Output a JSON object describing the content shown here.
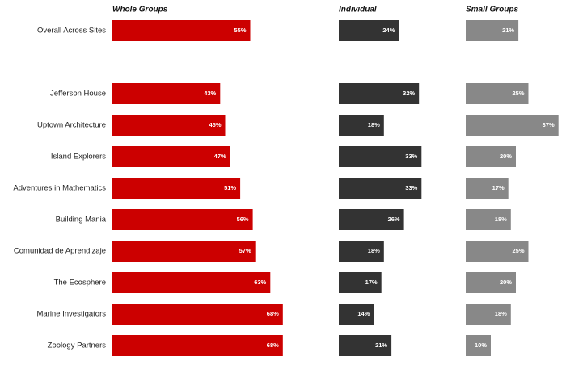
{
  "chart_data": {
    "type": "bar",
    "categories": [
      "Overall Across Sites",
      "Jefferson House",
      "Uptown Architecture",
      "Island Explorers",
      "Adventures in Mathematics",
      "Building Mania",
      "Comunidad de Aprendizaje",
      "The Ecosphere",
      "Marine Investigators",
      "Zoology Partners"
    ],
    "series": [
      {
        "name": "Whole Groups",
        "color": "#cc0000",
        "values": [
          55,
          43,
          45,
          47,
          51,
          56,
          57,
          63,
          68,
          68
        ],
        "value_labels": [
          "55%",
          "43%",
          "45%",
          "47%",
          "51%",
          "56%",
          "57%",
          "63%",
          "68%",
          "68%"
        ]
      },
      {
        "name": "Individual",
        "color": "#333333",
        "values": [
          24,
          32,
          18,
          33,
          33,
          26,
          18,
          17,
          14,
          21
        ],
        "value_labels": [
          "24%",
          "32%",
          "18%",
          "33%",
          "33%",
          "26%",
          "18%",
          "17%",
          "14%",
          "21%"
        ]
      },
      {
        "name": "Small Groups",
        "color": "#888888",
        "values": [
          21,
          25,
          37,
          20,
          17,
          18,
          25,
          20,
          18,
          10
        ],
        "value_labels": [
          "21%",
          "25%",
          "37%",
          "20%",
          "17%",
          "18%",
          "25%",
          "20%",
          "18%",
          "10%"
        ]
      }
    ]
  }
}
